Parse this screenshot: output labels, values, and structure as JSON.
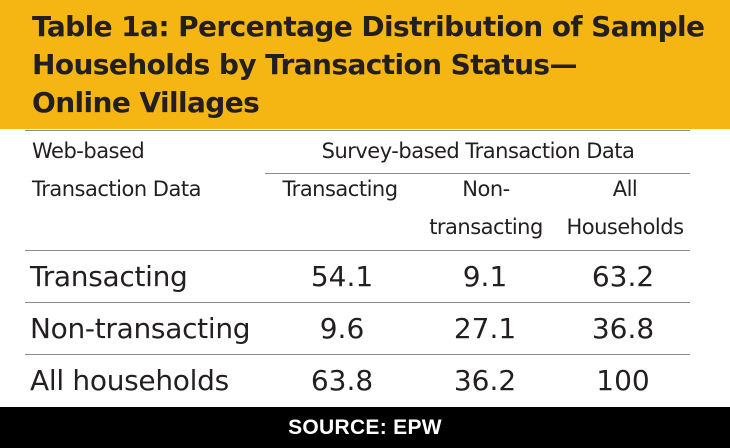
{
  "title": {
    "line1": "Table 1a: Percentage Distribution of Sample",
    "line2": "Households by Transaction Status—",
    "line3": "Online Villages"
  },
  "table": {
    "row_header_label_line1": "Web-based",
    "row_header_label_line2": "Transaction Data",
    "group_header": "Survey-based Transaction Data",
    "columns": [
      {
        "line1": "Transacting",
        "line2": ""
      },
      {
        "line1": "Non-",
        "line2": "transacting"
      },
      {
        "line1": "All",
        "line2": "Households"
      }
    ],
    "rows": [
      {
        "label": "Transacting",
        "values": [
          "54.1",
          "9.1",
          "63.2"
        ]
      },
      {
        "label": "Non-transacting",
        "values": [
          "9.6",
          "27.1",
          "36.8"
        ]
      },
      {
        "label": "All households",
        "values": [
          "63.8",
          "36.2",
          "100"
        ]
      }
    ]
  },
  "footer": {
    "source": "SOURCE: EPW"
  },
  "colors": {
    "header_bg": "#f5b614",
    "footer_bg": "#000000",
    "text": "#231f20",
    "rule": "#8a8a8a"
  }
}
